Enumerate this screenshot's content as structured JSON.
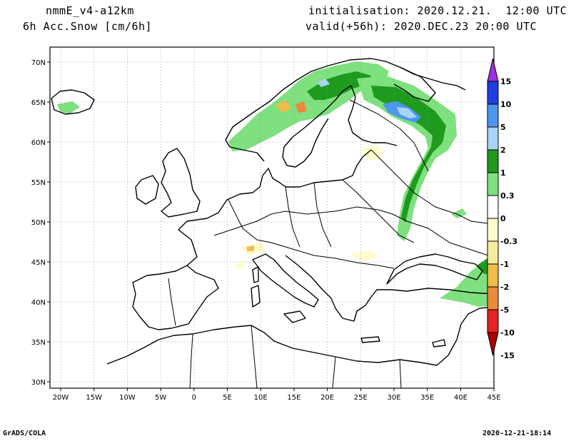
{
  "header": {
    "model": "nmmE_v4-a12km",
    "variable": "6h Acc.Snow [cm/6h]",
    "init": "initialisation: 2020.12.21.  12:00 UTC",
    "valid": "valid(+56h): 2020.DEC.23 20:00 UTC"
  },
  "footer": {
    "left": "GrADS/COLA",
    "right": "2020-12-21-18:14"
  },
  "map": {
    "lon_labels": [
      "20W",
      "15W",
      "10W",
      "5W",
      "0",
      "5E",
      "10E",
      "15E",
      "20E",
      "25E",
      "30E",
      "35E",
      "40E",
      "45E"
    ],
    "lat_labels": [
      "70N",
      "65N",
      "60N",
      "55N",
      "50N",
      "45N",
      "40N",
      "35N",
      "30N"
    ]
  },
  "legend": {
    "labels": [
      "15",
      "10",
      "5",
      "2",
      "1",
      "0.3",
      "0",
      "-0.3",
      "-1",
      "-2",
      "-5",
      "-10",
      "-15"
    ],
    "colors": [
      "#9b30e0",
      "#1f3fe0",
      "#4c96ee",
      "#a8d4f6",
      "#1e9a1e",
      "#7ee07e",
      "#ffffff",
      "#fffbcc",
      "#f7ec9a",
      "#f0bc4a",
      "#ec8a3c",
      "#e62222",
      "#aa0000"
    ]
  },
  "colors": {
    "land_outline": "#000000",
    "grid": "#9a9a9a",
    "snow_light": "#7ee07e",
    "snow_mid": "#1e9a1e",
    "snow_pale_blue": "#a8d4f6",
    "snow_blue": "#4c96ee",
    "neg_pale": "#fffbcc",
    "neg_orange": "#ec8a3c"
  }
}
